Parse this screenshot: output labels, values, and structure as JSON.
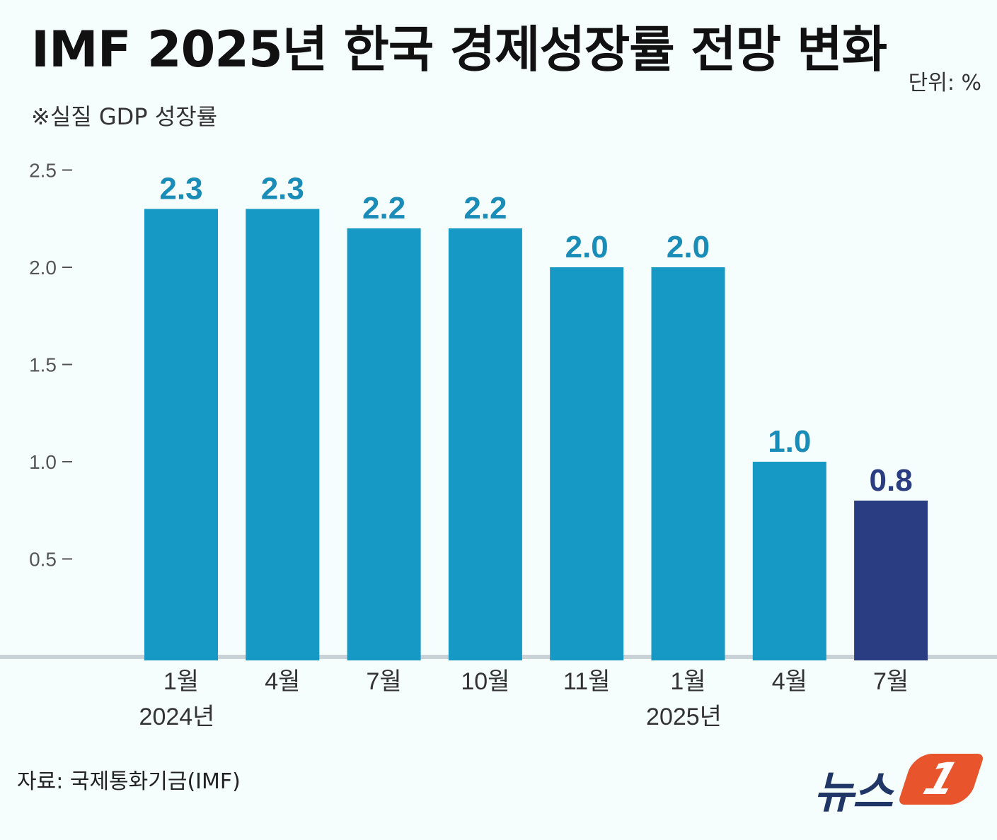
{
  "header": {
    "title": "IMF 2025년 한국 경제성장률 전망 변화",
    "unit": "단위: %",
    "subtitle": "※실질 GDP 성장률"
  },
  "footer": {
    "source": "자료: 국제통화기금(IMF)",
    "logo_text": "뉴스",
    "logo_mark": "1"
  },
  "colors": {
    "bar": "#1699c4",
    "highlight_bar": "#2b3d82",
    "bar_label": "#1a8cb8",
    "highlight_label": "#2b3d82",
    "axis_tick": "#555555",
    "baseline": "#c9d2d6"
  },
  "chart_data": {
    "type": "bar",
    "title": "IMF 2025년 한국 경제성장률 전망 변화",
    "ylabel": "",
    "xlabel": "",
    "ylim": [
      0,
      2.5
    ],
    "yticks": [
      "0.5",
      "1.0",
      "1.5",
      "2.0",
      "2.5"
    ],
    "grid": false,
    "categories": [
      "1월",
      "4월",
      "7월",
      "10월",
      "11월",
      "1월",
      "4월",
      "7월"
    ],
    "year_labels": [
      {
        "index": 0,
        "label": "2024년"
      },
      {
        "index": 5,
        "label": "2025년"
      }
    ],
    "values": [
      2.3,
      2.3,
      2.2,
      2.2,
      2.0,
      2.0,
      1.0,
      0.8
    ],
    "value_labels": [
      "2.3",
      "2.3",
      "2.2",
      "2.2",
      "2.0",
      "2.0",
      "1.0",
      "0.8"
    ],
    "highlight_index": 7
  }
}
